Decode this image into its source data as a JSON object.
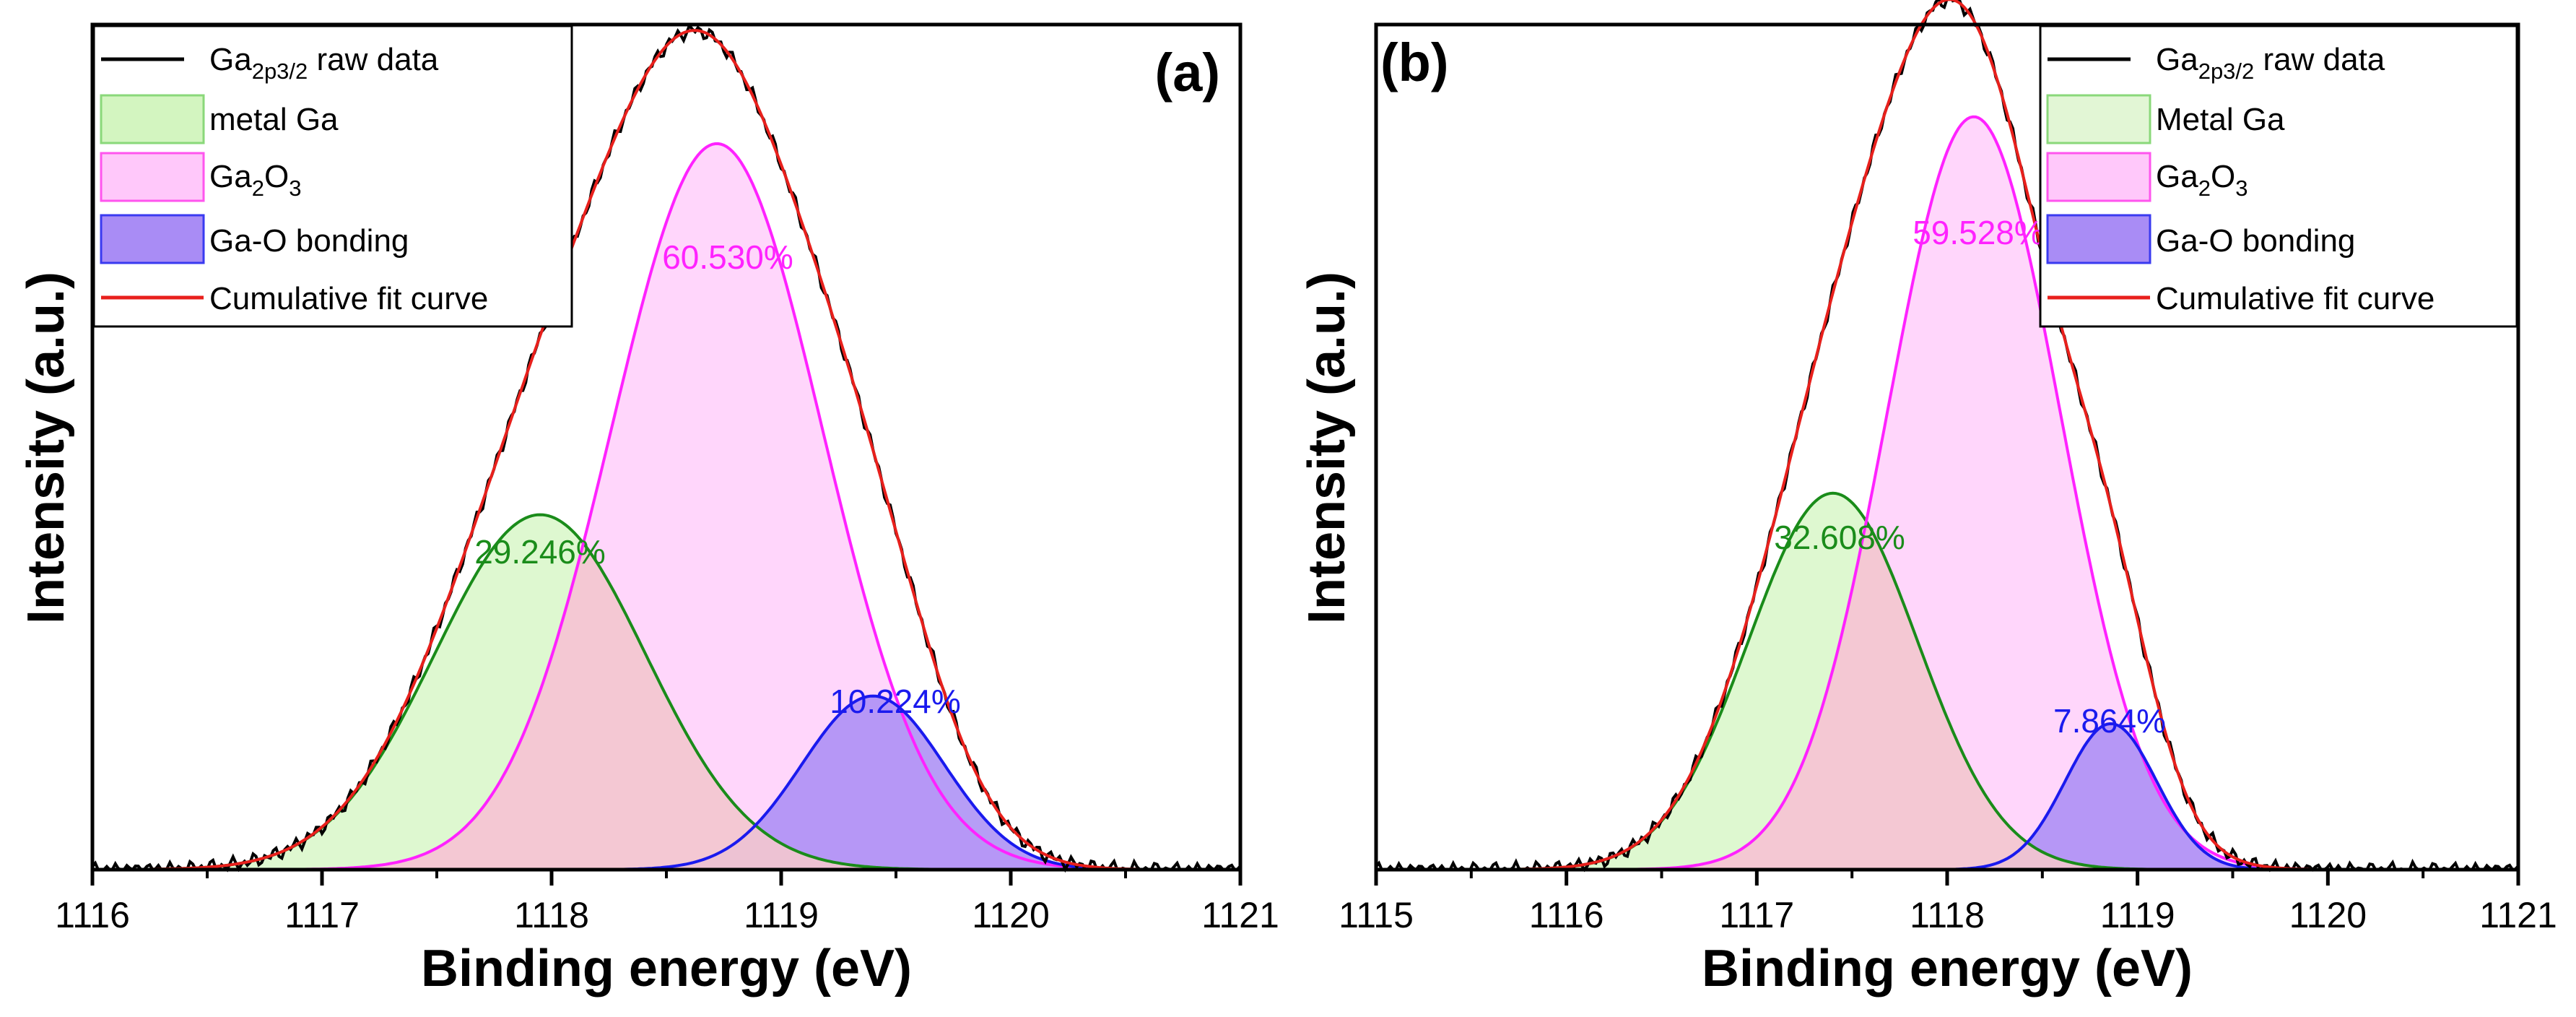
{
  "colors": {
    "raw": "#000000",
    "fit": "#e8201c",
    "metal_line": "#1a8c1a",
    "metal_fill": "#d3f5c0",
    "ga2o3_line": "#ff22ff",
    "ga2o3_fill": "#ffc8fa",
    "gao_line": "#1a1aee",
    "gao_fill": "#a98cf5",
    "overlap_metal_ga2o3": "#f3c6cf"
  },
  "chart_data": [
    {
      "type": "area",
      "panel_label": "(a)",
      "xlabel": "Binding energy (eV)",
      "ylabel": "Intensity (a.u.)",
      "xlim": [
        1116,
        1121
      ],
      "xticks": [
        "1116",
        "1117",
        "1118",
        "1119",
        "1120",
        "1121"
      ],
      "ylim": [
        0,
        1.1
      ],
      "legend_position": "top-left",
      "legend": {
        "raw_main": "Ga",
        "raw_sub": "2p3/2",
        "raw_rest": " raw data",
        "metal": "metal Ga",
        "ga2o3_a": "Ga",
        "ga2o3_b": "2",
        "ga2o3_c": "O",
        "ga2o3_d": "3",
        "gao": "Ga-O bonding",
        "fit": "Cumulative fit curve"
      },
      "series": [
        {
          "name": "metal Ga",
          "center": 1117.95,
          "height": 0.462,
          "sigma": 0.46,
          "label": "29.246%"
        },
        {
          "name": "Ga2O3",
          "center": 1118.72,
          "height": 0.945,
          "sigma": 0.46,
          "label": "60.530%"
        },
        {
          "name": "Ga-O bonding",
          "center": 1119.4,
          "height": 0.226,
          "sigma": 0.31,
          "label": "10.224%"
        }
      ]
    },
    {
      "type": "area",
      "panel_label": "(b)",
      "xlabel": "Binding energy (eV)",
      "ylabel": "Intensity (a.u.)",
      "xlim": [
        1115,
        1121
      ],
      "xticks": [
        "1115",
        "1116",
        "1117",
        "1118",
        "1119",
        "1120",
        "1121"
      ],
      "ylim": [
        0,
        1.1
      ],
      "legend_position": "top-right",
      "legend": {
        "raw_main": "Ga",
        "raw_sub": "2p3/2",
        "raw_rest": " raw data",
        "metal": "Metal Ga",
        "ga2o3_a": "Ga",
        "ga2o3_b": "2",
        "ga2o3_c": "O",
        "ga2o3_d": "3",
        "gao": "Ga-O bonding",
        "fit": "Cumulative fit curve"
      },
      "series": [
        {
          "name": "Metal Ga",
          "center": 1117.4,
          "height": 0.49,
          "sigma": 0.445,
          "label": "32.608%"
        },
        {
          "name": "Ga2O3",
          "center": 1118.14,
          "height": 0.98,
          "sigma": 0.455,
          "label": "59.528%"
        },
        {
          "name": "Ga-O bonding",
          "center": 1118.86,
          "height": 0.19,
          "sigma": 0.24,
          "label": "7.864%"
        }
      ]
    }
  ]
}
